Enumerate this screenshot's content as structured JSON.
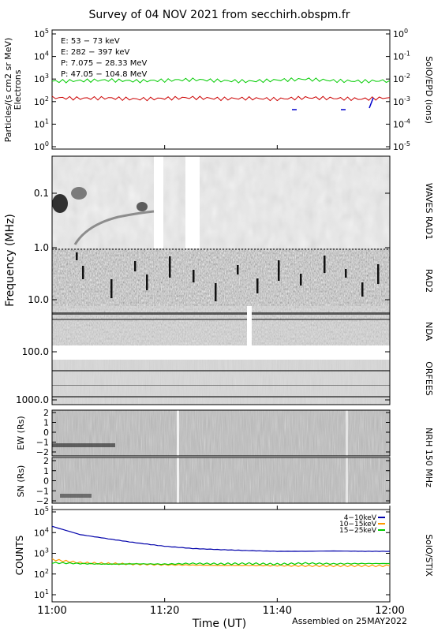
{
  "title": "Survey of 04 NOV 2021 from secchirh.obspm.fr",
  "footer": "Assembled on 25MAY2022",
  "x_axis": {
    "label": "Time (UT)",
    "ticks": [
      "11:00",
      "11:20",
      "11:40",
      "12:00"
    ]
  },
  "panels": {
    "particles": {
      "ylabel_1": "Particles/(s cm2 sr MeV)",
      "ylabel_2": "Electrons",
      "right_label": "SolO/EPD (ions)",
      "left_ticks": [
        {
          "base": "10",
          "exp": "5"
        },
        {
          "base": "10",
          "exp": "4"
        },
        {
          "base": "10",
          "exp": "3"
        },
        {
          "base": "10",
          "exp": "2"
        },
        {
          "base": "10",
          "exp": "1"
        },
        {
          "base": "10",
          "exp": "0"
        }
      ],
      "right_ticks": [
        {
          "base": "10",
          "exp": "0"
        },
        {
          "base": "10",
          "exp": "-1"
        },
        {
          "base": "10",
          "exp": "-2"
        },
        {
          "base": "10",
          "exp": "-3"
        },
        {
          "base": "10",
          "exp": "-4"
        },
        {
          "base": "10",
          "exp": "-5"
        }
      ],
      "legend": [
        {
          "text": "E: 53 − 73 keV",
          "color": "#00cc00"
        },
        {
          "text": "E: 282 − 397 keV",
          "color": "#cc0000"
        },
        {
          "text": "P: 7.075 − 28.33 MeV",
          "color": "#000000"
        },
        {
          "text": "P: 47.05 − 104.8 MeV",
          "color": "#0000cc"
        }
      ]
    },
    "spectrogram": {
      "ylabel": "Frequency (MHz)",
      "ticks": [
        "0.1",
        "1.0",
        "10.0",
        "100.0",
        "1000.0"
      ],
      "instruments": [
        "WAVES RAD1",
        "RAD2",
        "NDA",
        "ORFEES"
      ]
    },
    "nrh": {
      "right_label": "NRH 150 MHz",
      "ew_label": "EW (Rs)",
      "sn_label": "SN (Rs)",
      "ticks": [
        "2",
        "1",
        "0",
        "−1",
        "−2"
      ]
    },
    "stix": {
      "ylabel": "COUNTS",
      "right_label": "SolO/STIX",
      "ticks": [
        {
          "base": "10",
          "exp": "5"
        },
        {
          "base": "10",
          "exp": "4"
        },
        {
          "base": "10",
          "exp": "3"
        },
        {
          "base": "10",
          "exp": "2"
        },
        {
          "base": "10",
          "exp": "1"
        }
      ],
      "legend": [
        {
          "text": "4−10keV",
          "color": "#0000aa"
        },
        {
          "text": "10−15keV",
          "color": "#ff9900"
        },
        {
          "text": "15−25keV",
          "color": "#00cc00"
        }
      ]
    }
  },
  "chart_data": [
    {
      "type": "line",
      "title": "Survey of 04 NOV 2021 from secchirh.obspm.fr",
      "xlabel": "Time (UT)",
      "ylabel": "Particles/(s cm2 sr MeV) Electrons",
      "x_range": [
        "11:00",
        "12:00"
      ],
      "y_scale": "log",
      "ylim": [
        0.5,
        100000
      ],
      "x": [
        "11:00",
        "11:05",
        "11:10",
        "11:15",
        "11:20",
        "11:25",
        "11:30",
        "11:35",
        "11:40",
        "11:45",
        "11:50",
        "11:55",
        "12:00"
      ],
      "series": [
        {
          "name": "E: 53 − 73 keV",
          "values": [
            800,
            850,
            900,
            820,
            880,
            950,
            850,
            800,
            900,
            1000,
            850,
            800,
            850
          ]
        },
        {
          "name": "E: 282 − 397 keV",
          "values": [
            150,
            140,
            145,
            130,
            140,
            150,
            135,
            140,
            130,
            150,
            140,
            130,
            150
          ]
        }
      ],
      "grid": false
    },
    {
      "type": "line",
      "title": "",
      "xlabel": "Time (UT)",
      "ylabel": "COUNTS",
      "x_range": [
        "11:00",
        "12:00"
      ],
      "y_scale": "log",
      "ylim": [
        1,
        100000
      ],
      "x": [
        "11:00",
        "11:05",
        "11:10",
        "11:15",
        "11:20",
        "11:25",
        "11:30",
        "11:35",
        "11:40",
        "11:45",
        "11:50",
        "11:55",
        "12:00"
      ],
      "series": [
        {
          "name": "4−10keV",
          "values": [
            20000,
            8000,
            5000,
            3200,
            2200,
            1700,
            1500,
            1350,
            1250,
            1250,
            1300,
            1250,
            1250
          ]
        },
        {
          "name": "10−15keV",
          "values": [
            500,
            350,
            320,
            300,
            280,
            270,
            260,
            260,
            255,
            250,
            250,
            250,
            250
          ]
        },
        {
          "name": "15−25keV",
          "values": [
            350,
            320,
            300,
            310,
            300,
            320,
            310,
            320,
            300,
            330,
            310,
            320,
            320
          ]
        }
      ],
      "legend_position": "top-right",
      "grid": false
    }
  ]
}
